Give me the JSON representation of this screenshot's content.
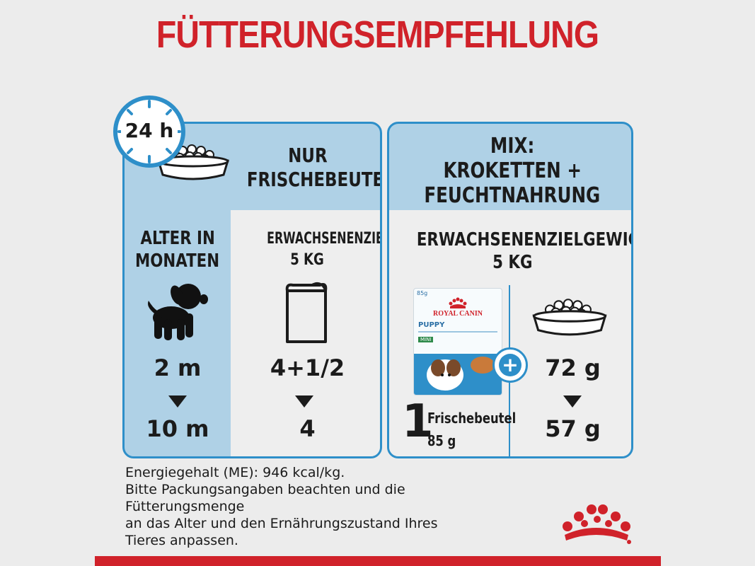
{
  "title": "FÜTTERUNGSEMPFEHLUNG",
  "clock": {
    "label": "24 h"
  },
  "left_panel": {
    "header_line1": "NUR",
    "header_line2": "FRISCHEBEUTEL",
    "age_header_line1": "ALTER IN",
    "age_header_line2": "MONATEN",
    "weight_header_line1": "ERWACHSENENZIELGEWICHT:",
    "weight_header_line2": "5 KG",
    "age_from": "2 m",
    "age_to": "10 m",
    "pouch_from": "4+1/2",
    "pouch_to": "4"
  },
  "right_panel": {
    "header_line1": "MIX:",
    "header_line2": "KROKETTEN +",
    "header_line3": "FEUCHTNAHRUNG",
    "weight_header_line1": "ERWACHSENENZIELGEWICHT:",
    "weight_header_line2": "5 KG",
    "pouch_count": "1",
    "pouch_label": "Frischebeutel",
    "pouch_weight": "85 g",
    "kibble_from": "72 g",
    "kibble_to": "57 g",
    "package": {
      "weight": "85g",
      "brand": "ROYAL CANIN",
      "product": "PUPPY",
      "variant": "MINI"
    }
  },
  "footer": {
    "line1": "Energiegehalt (ME): 946 kcal/kg.",
    "line2": "Bitte Packungsangaben beachten und die",
    "line3": "Fütterungsmenge",
    "line4": "an das Alter und den Ernährungszustand Ihres",
    "line5": "Tieres anpassen."
  },
  "colors": {
    "brand_red": "#d0222a",
    "panel_blue": "#afd1e6",
    "border_blue": "#2e8fc9"
  }
}
